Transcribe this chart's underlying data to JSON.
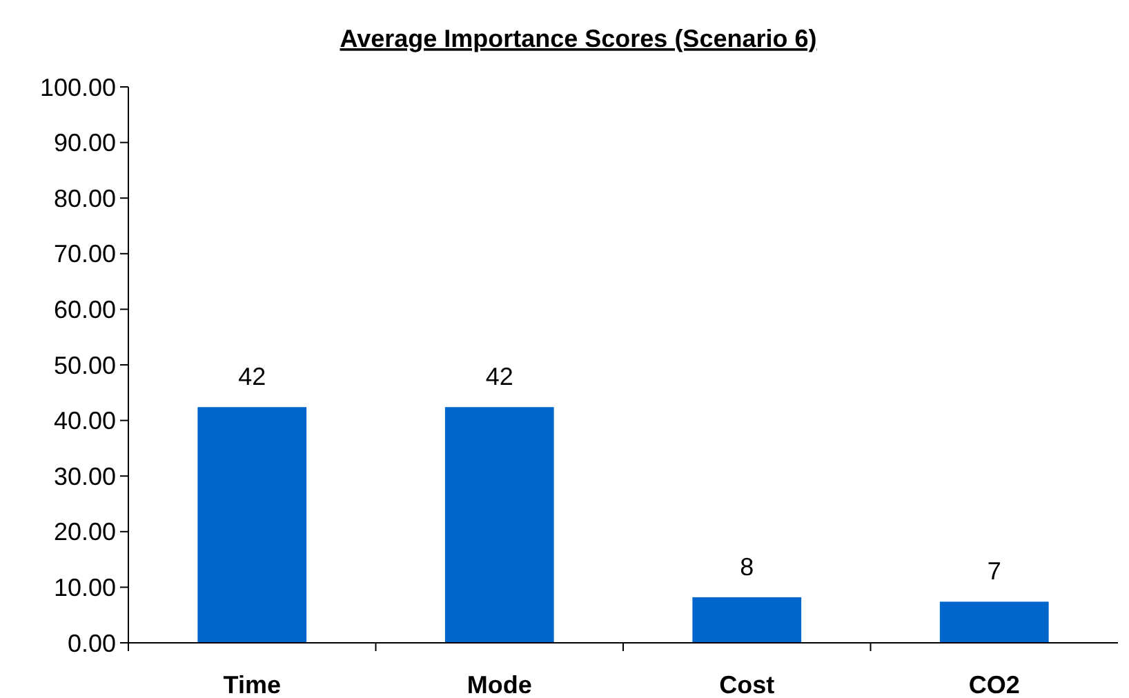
{
  "chart_data": {
    "type": "bar",
    "title": "Average Importance Scores (Scenario 6)",
    "categories": [
      "Time",
      "Mode",
      "Cost",
      "CO2"
    ],
    "values": [
      42.4,
      42.4,
      8.2,
      7.4
    ],
    "value_labels": [
      "42",
      "42",
      "8",
      "7"
    ],
    "color": "#0066cc",
    "ylim": [
      0,
      100
    ],
    "yticks": [
      {
        "value": 0,
        "label": "0.00"
      },
      {
        "value": 10,
        "label": "10.00"
      },
      {
        "value": 20,
        "label": "20.00"
      },
      {
        "value": 30,
        "label": "30.00"
      },
      {
        "value": 40,
        "label": "40.00"
      },
      {
        "value": 50,
        "label": "50.00"
      },
      {
        "value": 60,
        "label": "60.00"
      },
      {
        "value": 70,
        "label": "70.00"
      },
      {
        "value": 80,
        "label": "80.00"
      },
      {
        "value": 90,
        "label": "90.00"
      },
      {
        "value": 100,
        "label": "100.00"
      }
    ],
    "grid": false
  }
}
